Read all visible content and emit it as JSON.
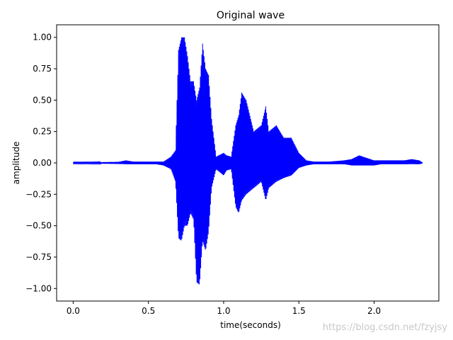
{
  "chart_data": {
    "type": "line",
    "title": "Original wave",
    "xlabel": "time(seconds)",
    "ylabel": "amplitude",
    "xlim": [
      -0.11,
      2.43
    ],
    "ylim": [
      -1.1,
      1.1
    ],
    "xticks": [
      0.0,
      0.5,
      1.0,
      1.5,
      2.0
    ],
    "xtick_labels": [
      "0.0",
      "0.5",
      "1.0",
      "1.5",
      "2.0"
    ],
    "yticks": [
      1.0,
      0.75,
      0.5,
      0.25,
      0.0,
      -0.25,
      -0.5,
      -0.75,
      -1.0
    ],
    "ytick_labels": [
      "1.00",
      "0.75",
      "0.50",
      "0.25",
      "0.00",
      "−0.25",
      "−0.50",
      "−0.75",
      "−1.00"
    ],
    "grid": false,
    "line_color": "#0000ff",
    "series": [
      {
        "x": [
          0.0,
          0.1,
          0.2,
          0.3,
          0.35,
          0.4,
          0.45,
          0.5,
          0.55,
          0.6,
          0.65,
          0.68,
          0.7,
          0.72,
          0.74,
          0.76,
          0.78,
          0.8,
          0.82,
          0.84,
          0.86,
          0.88,
          0.9,
          0.92,
          0.95,
          1.0,
          1.02,
          1.05,
          1.08,
          1.1,
          1.12,
          1.15,
          1.2,
          1.25,
          1.28,
          1.3,
          1.35,
          1.4,
          1.45,
          1.5,
          1.55,
          1.6,
          1.7,
          1.8,
          1.85,
          1.9,
          1.95,
          2.0,
          2.05,
          2.1,
          2.15,
          2.2,
          2.25,
          2.3,
          2.32
        ],
        "upper": [
          0.005,
          0.005,
          0.006,
          0.008,
          0.02,
          0.01,
          0.01,
          0.01,
          0.01,
          0.01,
          0.05,
          0.1,
          0.9,
          1.0,
          1.0,
          0.85,
          0.65,
          0.65,
          0.5,
          0.6,
          0.95,
          0.75,
          0.7,
          0.35,
          0.05,
          0.08,
          0.06,
          0.05,
          0.3,
          0.38,
          0.56,
          0.5,
          0.25,
          0.3,
          0.45,
          0.25,
          0.3,
          0.2,
          0.2,
          0.08,
          0.02,
          0.01,
          0.01,
          0.02,
          0.03,
          0.06,
          0.04,
          0.02,
          0.02,
          0.02,
          0.02,
          0.02,
          0.03,
          0.02,
          0.005
        ],
        "lower": [
          -0.005,
          -0.005,
          -0.006,
          -0.008,
          -0.01,
          -0.01,
          -0.01,
          -0.01,
          -0.01,
          -0.02,
          -0.05,
          -0.15,
          -0.6,
          -0.62,
          -0.5,
          -0.5,
          -0.4,
          -0.45,
          -0.95,
          -0.97,
          -0.62,
          -0.7,
          -0.55,
          -0.2,
          -0.05,
          -0.1,
          -0.06,
          -0.05,
          -0.35,
          -0.4,
          -0.3,
          -0.25,
          -0.2,
          -0.15,
          -0.3,
          -0.2,
          -0.15,
          -0.12,
          -0.1,
          -0.04,
          -0.02,
          -0.01,
          -0.01,
          -0.01,
          -0.02,
          -0.02,
          -0.02,
          -0.02,
          -0.01,
          -0.01,
          -0.01,
          -0.01,
          -0.01,
          -0.01,
          -0.005
        ]
      }
    ]
  },
  "watermark": "https://blog.csdn.net/fzyjsy"
}
